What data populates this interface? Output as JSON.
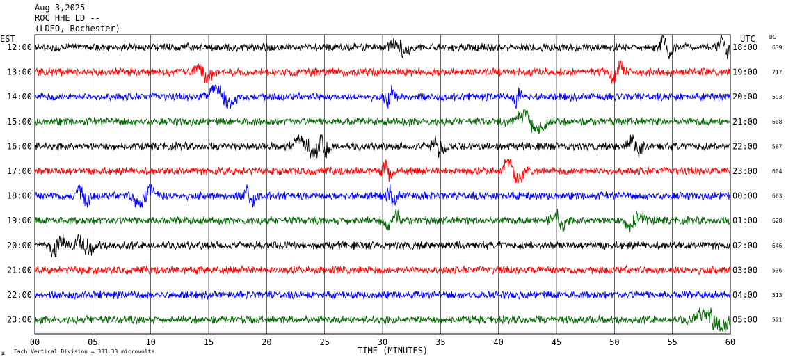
{
  "header": {
    "line1": "Aug 3,2025",
    "line2": "ROC HHE LD --",
    "line3": "(LDEO, Rochester)"
  },
  "left_zone": "EST",
  "right_zone": "UTC",
  "dc_label": "DC",
  "footer_note": "Each Vertical Division =  333.33 microvolts",
  "footer_mark": "μ",
  "colors": {
    "black": "#000000",
    "red": "#ff0000",
    "blue": "#0000ff",
    "green": "#006400"
  },
  "chart_data": {
    "type": "line",
    "xlabel": "TIME (MINUTES)",
    "xlim": [
      0,
      60
    ],
    "x_ticks": [
      "00",
      "05",
      "10",
      "15",
      "20",
      "25",
      "30",
      "35",
      "40",
      "45",
      "50",
      "55",
      "60"
    ],
    "x_gridlines_every_min": 5,
    "series": [
      {
        "est": "12:00",
        "utc": "18:00",
        "dc": "639",
        "color": "black",
        "events": [
          {
            "t": 31.5,
            "a": 14,
            "w": 0.8
          },
          {
            "t": 54.5,
            "a": 12,
            "w": 0.6
          },
          {
            "t": 59.5,
            "a": 10,
            "w": 0.5
          }
        ]
      },
      {
        "est": "13:00",
        "utc": "19:00",
        "dc": "717",
        "color": "red",
        "events": [
          {
            "t": 14.5,
            "a": 14,
            "w": 0.7
          },
          {
            "t": 50.2,
            "a": -14,
            "w": 0.6
          }
        ]
      },
      {
        "est": "14:00",
        "utc": "20:00",
        "dc": "593",
        "color": "blue",
        "events": [
          {
            "t": 16.2,
            "a": 16,
            "w": 1.2
          },
          {
            "t": 30.6,
            "a": -12,
            "w": 0.4
          },
          {
            "t": 41.7,
            "a": -10,
            "w": 0.4
          }
        ]
      },
      {
        "est": "15:00",
        "utc": "21:00",
        "dc": "608",
        "color": "green",
        "events": [
          {
            "t": 42.8,
            "a": 16,
            "w": 1.3
          }
        ]
      },
      {
        "est": "16:00",
        "utc": "22:00",
        "dc": "587",
        "color": "black",
        "events": [
          {
            "t": 23.5,
            "a": 16,
            "w": 1.2
          },
          {
            "t": 25,
            "a": 14,
            "w": 0.5
          },
          {
            "t": 34.8,
            "a": 10,
            "w": 0.6
          },
          {
            "t": 51.8,
            "a": 12,
            "w": 0.7
          }
        ]
      },
      {
        "est": "17:00",
        "utc": "23:00",
        "dc": "604",
        "color": "red",
        "events": [
          {
            "t": 30.5,
            "a": 10,
            "w": 0.5
          },
          {
            "t": 41.3,
            "a": 24,
            "w": 0.8
          }
        ]
      },
      {
        "est": "18:00",
        "utc": "00:00",
        "dc": "663",
        "color": "blue",
        "events": [
          {
            "t": 4.2,
            "a": 12,
            "w": 0.6
          },
          {
            "t": 9.5,
            "a": -16,
            "w": 1.0
          },
          {
            "t": 18.5,
            "a": 10,
            "w": 0.5
          },
          {
            "t": 30.8,
            "a": 8,
            "w": 0.5
          }
        ]
      },
      {
        "est": "19:00",
        "utc": "01:00",
        "dc": "628",
        "color": "green",
        "events": [
          {
            "t": 30.8,
            "a": -14,
            "w": 0.6
          },
          {
            "t": 45.2,
            "a": 10,
            "w": 0.6
          },
          {
            "t": 51.8,
            "a": -12,
            "w": 0.8
          }
        ]
      },
      {
        "est": "20:00",
        "utc": "02:00",
        "dc": "646",
        "color": "black",
        "events": [
          {
            "t": 2,
            "a": -14,
            "w": 0.7
          },
          {
            "t": 4.3,
            "a": 10,
            "w": 0.8
          }
        ]
      },
      {
        "est": "21:00",
        "utc": "03:00",
        "dc": "536",
        "color": "red",
        "events": []
      },
      {
        "est": "22:00",
        "utc": "04:00",
        "dc": "513",
        "color": "blue",
        "events": []
      },
      {
        "est": "23:00",
        "utc": "05:00",
        "dc": "521",
        "color": "green",
        "events": [
          {
            "t": 58.5,
            "a": 14,
            "w": 1.5
          }
        ]
      }
    ]
  }
}
